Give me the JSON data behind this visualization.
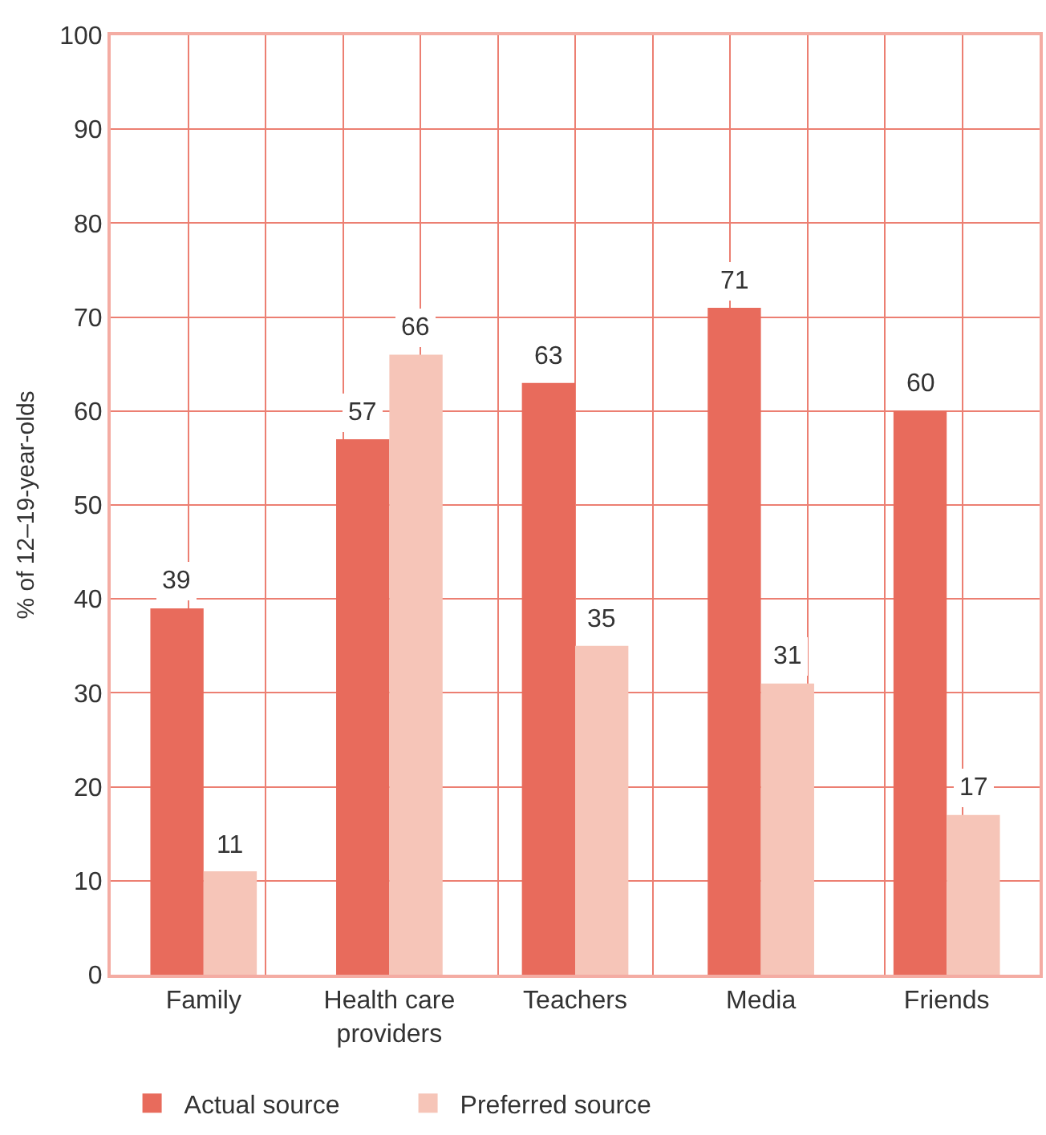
{
  "chart_data": {
    "type": "bar",
    "categories": [
      "Family",
      "Health care providers",
      "Teachers",
      "Media",
      "Friends"
    ],
    "ylabel": "% of 12–19-year-olds",
    "series": [
      {
        "name": "Actual source",
        "color": "#e86b5c",
        "values": [
          39,
          57,
          63,
          71,
          60
        ]
      },
      {
        "name": "Preferred source",
        "color": "#f6c5b8",
        "values": [
          11,
          66,
          35,
          31,
          17
        ]
      }
    ],
    "ylim": [
      0,
      100
    ],
    "yticks": [
      0,
      10,
      20,
      30,
      40,
      50,
      60,
      70,
      80,
      90,
      100
    ],
    "grid": true,
    "legend": "bottom left",
    "data_labels": true
  }
}
